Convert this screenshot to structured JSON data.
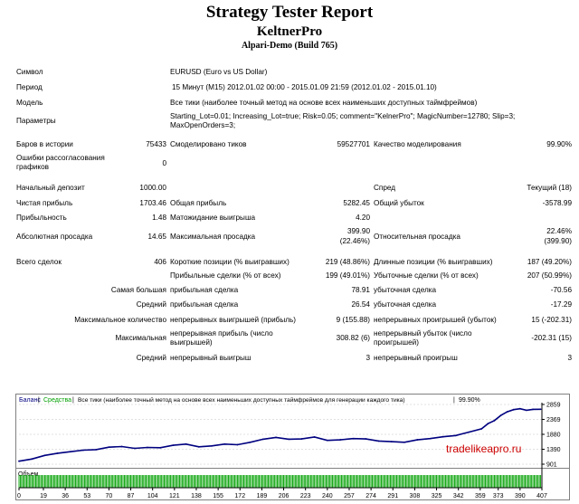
{
  "header": {
    "title": "Strategy Tester Report",
    "expert": "KeltnerPro",
    "server": "Alpari-Demo (Build 765)"
  },
  "info": {
    "symbol_label": "Символ",
    "symbol_value": "EURUSD (Euro vs US Dollar)",
    "period_label": "Период",
    "period_value": "15 Минут (M15) 2012.01.02 00:00 - 2015.01.09 21:59 (2012.01.02 - 2015.01.10)",
    "model_label": "Модель",
    "model_value": "Все тики (наиболее точный метод на основе всех наименьших доступных таймфреймов)",
    "params_label": "Параметры",
    "params_value": "Starting_Lot=0.01; Increasing_Lot=true; Risk=0.05; comment=\"KelnerPro\"; MagicNumber=12780; Slip=3; MaxOpenOrders=3;"
  },
  "stats": {
    "bars_label": "Баров в истории",
    "bars_value": "75433",
    "ticks_label": "Смоделировано тиков",
    "ticks_value": "59527701",
    "quality_label": "Качество моделирования",
    "quality_value": "99.90%",
    "errors_label": "Ошибки рассогласования графиков",
    "errors_value": "0",
    "deposit_label": "Начальный депозит",
    "deposit_value": "1000.00",
    "spread_label": "Спред",
    "spread_value": "Текущий (18)",
    "netprofit_label": "Чистая прибыль",
    "netprofit_value": "1703.46",
    "grossprofit_label": "Общая прибыль",
    "grossprofit_value": "5282.45",
    "grossloss_label": "Общий убыток",
    "grossloss_value": "-3578.99",
    "pf_label": "Прибыльность",
    "pf_value": "1.48",
    "expect_label": "Матожидание выигрыша",
    "expect_value": "4.20",
    "absdd_label": "Абсолютная просадка",
    "absdd_value": "14.65",
    "maxdd_label": "Максимальная просадка",
    "maxdd_value1": "399.90",
    "maxdd_value2": "(22.46%)",
    "reldd_label": "Относительная просадка",
    "reldd_value1": "22.46%",
    "reldd_value2": "(399.90)",
    "trades_label": "Всего сделок",
    "trades_value": "406",
    "short_label": "Короткие позиции (% выигравших)",
    "short_value": "219 (48.86%)",
    "long_label": "Длинные позиции (% выигравших)",
    "long_value": "187 (49.20%)",
    "profittrades_label": "Прибыльные сделки (% от всех)",
    "profittrades_value": "199 (49.01%)",
    "losstrades_label": "Убыточные сделки (% от всех)",
    "losstrades_value": "207 (50.99%)",
    "largest_label": "Самая большая",
    "largest_profit_label": "прибыльная сделка",
    "largest_profit_value": "78.91",
    "largest_loss_label": "убыточная сделка",
    "largest_loss_value": "-70.56",
    "avg_label": "Средний",
    "avg_profit_label": "прибыльная сделка",
    "avg_profit_value": "26.54",
    "avg_loss_label": "убыточная сделка",
    "avg_loss_value": "-17.29",
    "maxcount_label": "Максимальное количество",
    "maxcount_wins_label": "непрерывных выигрышей (прибыль)",
    "maxcount_wins_value": "9 (155.88)",
    "maxcount_losses_label": "непрерывных проигрышей (убыток)",
    "maxcount_losses_value": "15 (-202.31)",
    "maximal_label": "Максимальная",
    "maximal_profit_label": "непрерывная прибыль (число выигрышей)",
    "maximal_profit_value": "308.82 (6)",
    "maximal_loss_label": "непрерывный убыток (число проигрышей)",
    "maximal_loss_value": "-202.31 (15)",
    "avgcons_label": "Средний",
    "avgcons_wins_label": "непрерывный выигрыш",
    "avgcons_wins_value": "3",
    "avgcons_losses_label": "непрерывный проигрыш",
    "avgcons_losses_value": "3"
  },
  "chart_data": {
    "type": "line",
    "legend": {
      "balance": "Баланс",
      "equity": "Средства",
      "description": "Все тики (наиболее точный метод на основе всех наименьших доступных таймфреймов для генерации каждого тика)",
      "quality": "99.90%"
    },
    "series_colors": {
      "balance": "#000080",
      "equity": "#00a000"
    },
    "volume_label": "Объем",
    "watermark": "tradelikeapro.ru",
    "y_ticks": [
      2859,
      2369,
      1880,
      1390,
      901
    ],
    "ylim": [
      901,
      2859
    ],
    "x_ticks": [
      0,
      19,
      36,
      53,
      70,
      87,
      104,
      121,
      138,
      155,
      172,
      189,
      206,
      223,
      240,
      257,
      274,
      291,
      308,
      325,
      342,
      359,
      373,
      390,
      407
    ],
    "xlim": [
      0,
      407
    ],
    "x": [
      0,
      10,
      20,
      30,
      40,
      50,
      60,
      70,
      80,
      90,
      100,
      110,
      120,
      130,
      140,
      150,
      160,
      170,
      180,
      190,
      200,
      210,
      220,
      230,
      240,
      250,
      260,
      270,
      280,
      290,
      300,
      310,
      320,
      330,
      340,
      350,
      360,
      365,
      370,
      375,
      380,
      385,
      390,
      395,
      400,
      406
    ],
    "balance": [
      1000,
      1070,
      1190,
      1260,
      1310,
      1360,
      1380,
      1460,
      1480,
      1420,
      1450,
      1440,
      1520,
      1560,
      1470,
      1500,
      1560,
      1540,
      1620,
      1720,
      1780,
      1720,
      1730,
      1790,
      1680,
      1700,
      1740,
      1730,
      1660,
      1640,
      1620,
      1700,
      1740,
      1800,
      1840,
      1950,
      2060,
      2230,
      2330,
      2500,
      2620,
      2690,
      2720,
      2670,
      2700,
      2703
    ]
  }
}
